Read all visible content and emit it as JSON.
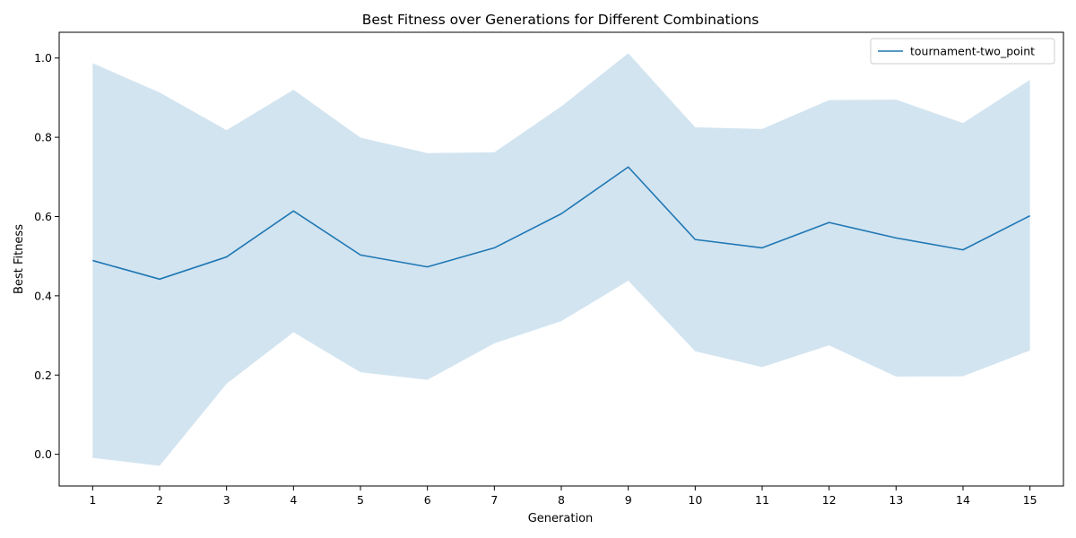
{
  "chart_data": {
    "type": "line",
    "title": "Best Fitness over Generations for Different Combinations",
    "xlabel": "Generation",
    "ylabel": "Best Fitness",
    "x": [
      1,
      2,
      3,
      4,
      5,
      6,
      7,
      8,
      9,
      10,
      11,
      12,
      13,
      14,
      15
    ],
    "xlim": [
      0.5,
      15.5
    ],
    "ylim": [
      -0.08,
      1.065
    ],
    "yticks": [
      0.0,
      0.2,
      0.4,
      0.6,
      0.8,
      1.0
    ],
    "ytick_labels": [
      "0.0",
      "0.2",
      "0.4",
      "0.6",
      "0.8",
      "1.0"
    ],
    "xtick_labels": [
      "1",
      "2",
      "3",
      "4",
      "5",
      "6",
      "7",
      "8",
      "9",
      "10",
      "11",
      "12",
      "13",
      "14",
      "15"
    ],
    "grid": false,
    "legend_position": "top-right",
    "series": [
      {
        "name": "tournament-two_point",
        "color": "#1f77b4",
        "band_color": "#1f77b4",
        "values": [
          0.489,
          0.442,
          0.498,
          0.614,
          0.503,
          0.473,
          0.521,
          0.607,
          0.725,
          0.542,
          0.521,
          0.585,
          0.546,
          0.516,
          0.602
        ],
        "upper": [
          0.987,
          0.913,
          0.818,
          0.92,
          0.799,
          0.76,
          0.762,
          0.878,
          1.012,
          0.825,
          0.821,
          0.894,
          0.895,
          0.836,
          0.945
        ],
        "lower": [
          -0.009,
          -0.029,
          0.178,
          0.308,
          0.207,
          0.188,
          0.28,
          0.336,
          0.438,
          0.26,
          0.22,
          0.275,
          0.196,
          0.197,
          0.262
        ]
      }
    ]
  }
}
